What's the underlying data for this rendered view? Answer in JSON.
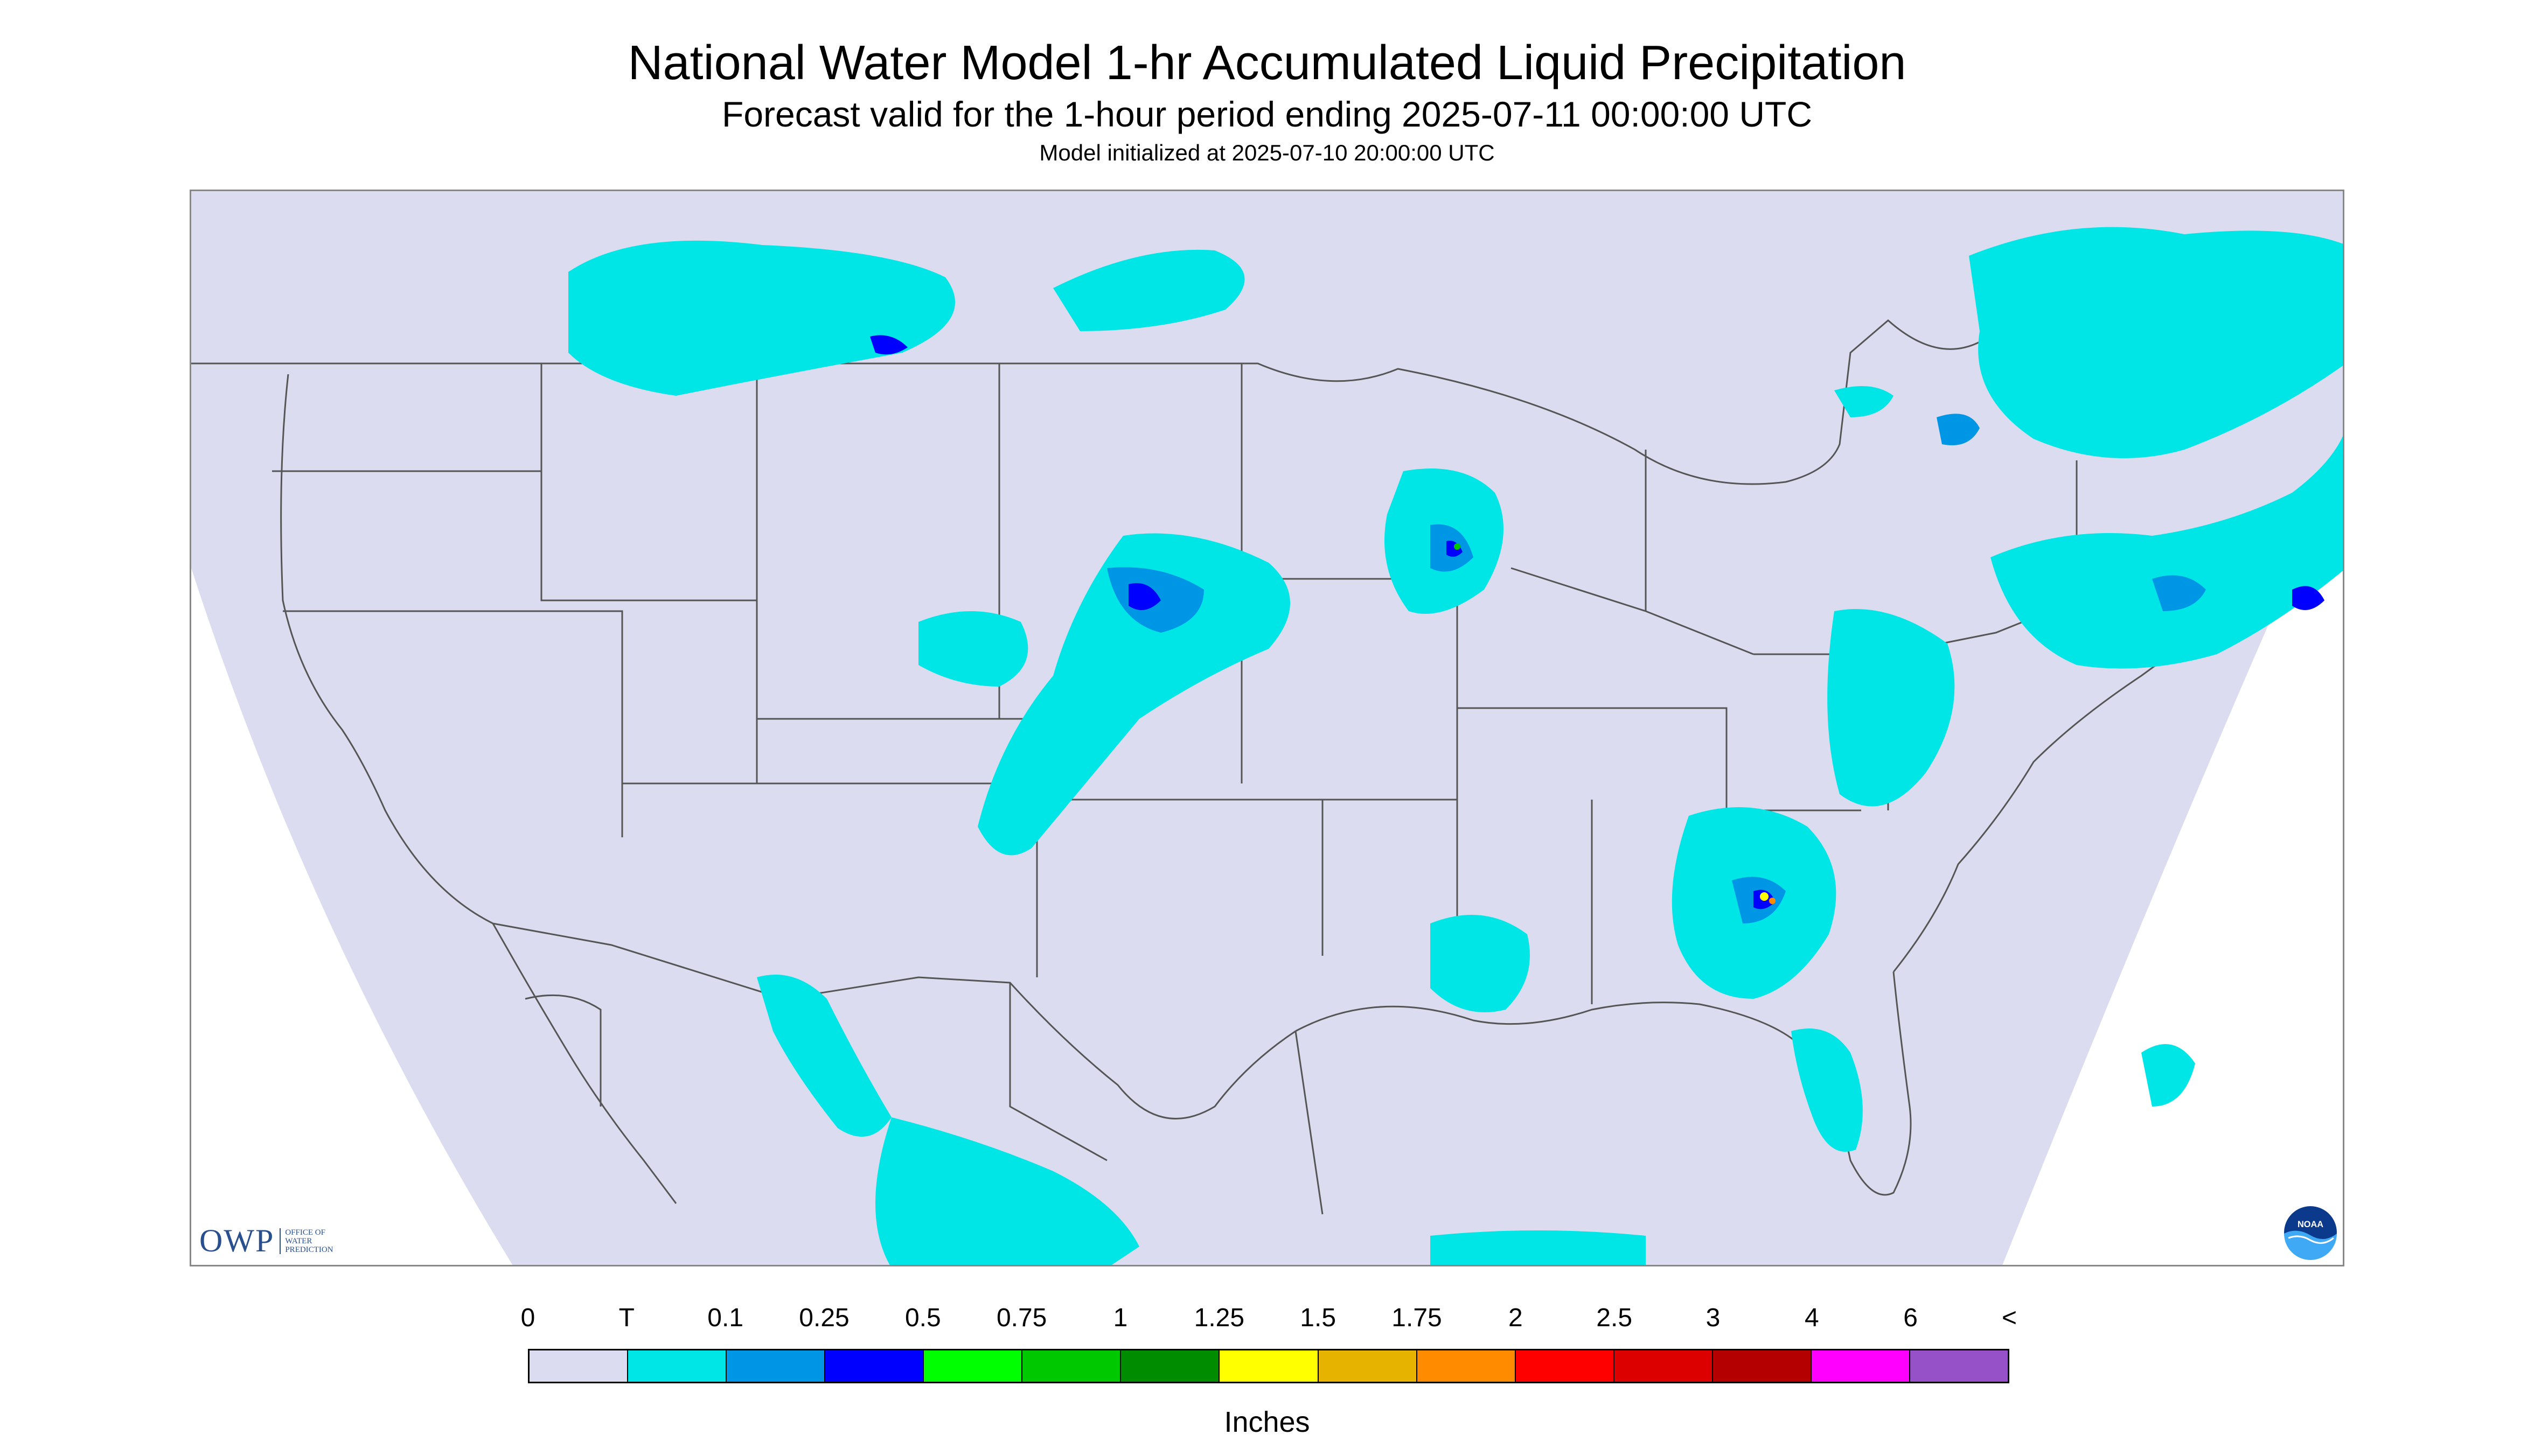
{
  "header": {
    "title": "National Water Model 1-hr Accumulated Liquid Precipitation",
    "subtitle": "Forecast valid for the 1-hour period ending 2025-07-11 00:00:00 UTC",
    "init": "Model initialized at 2025-07-10 20:00:00 UTC"
  },
  "logos": {
    "owp_text": "OWP",
    "owp_sub_1": "OFFICE OF",
    "owp_sub_2": "WATER",
    "owp_sub_3": "PREDICTION",
    "noaa_text": "NOAA"
  },
  "legend": {
    "labels": [
      "0",
      "T",
      "0.1",
      "0.25",
      "0.5",
      "0.75",
      "1",
      "1.25",
      "1.5",
      "1.75",
      "2",
      "2.5",
      "3",
      "4",
      "6",
      "<"
    ],
    "colors": [
      "#dcdcf0",
      "#00e5e5",
      "#0096e6",
      "#0000ff",
      "#00ff00",
      "#00c800",
      "#008c00",
      "#ffff00",
      "#e6b400",
      "#ff8c00",
      "#ff0000",
      "#dc0000",
      "#b40000",
      "#ff00ff",
      "#9650c8"
    ],
    "units": "Inches"
  },
  "colors": {
    "domain_fill": "#dcdcf0",
    "light_precip": "#00e5e5",
    "medium_precip": "#0096e6",
    "heavy_precip": "#0000ff",
    "border_line": "#555555"
  }
}
